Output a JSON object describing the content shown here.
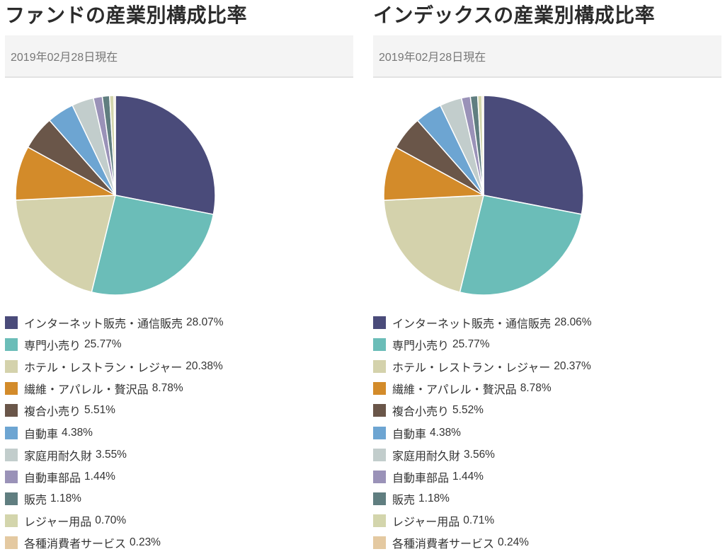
{
  "colors": [
    "#4a4b7a",
    "#6bbdb8",
    "#d4d2ac",
    "#d38b2a",
    "#6a5649",
    "#6da5d2",
    "#c2cdcc",
    "#9a92b8",
    "#607e80",
    "#d3d5ac",
    "#e4c9a1"
  ],
  "chart_data": [
    {
      "type": "pie",
      "title": "ファンドの産業別構成比率",
      "date": "2019年02月28日現在",
      "legend_position": "bottom",
      "categories": [
        "インターネット販売・通信販売",
        "専門小売り",
        "ホテル・レストラン・レジャー",
        "繊維・アパレル・贅沢品",
        "複合小売り",
        "自動車",
        "家庭用耐久財",
        "自動車部品",
        "販売",
        "レジャー用品",
        "各種消費者サービス"
      ],
      "values": [
        28.07,
        25.77,
        20.38,
        8.78,
        5.51,
        4.38,
        3.55,
        1.44,
        1.18,
        0.7,
        0.23
      ],
      "value_labels": [
        "28.07%",
        "25.77%",
        "20.38%",
        "8.78%",
        "5.51%",
        "4.38%",
        "3.55%",
        "1.44%",
        "1.18%",
        "0.70%",
        "0.23%"
      ]
    },
    {
      "type": "pie",
      "title": "インデックスの産業別構成比率",
      "date": "2019年02月28日現在",
      "legend_position": "bottom",
      "categories": [
        "インターネット販売・通信販売",
        "専門小売り",
        "ホテル・レストラン・レジャー",
        "繊維・アパレル・贅沢品",
        "複合小売り",
        "自動車",
        "家庭用耐久財",
        "自動車部品",
        "販売",
        "レジャー用品",
        "各種消費者サービス"
      ],
      "values": [
        28.06,
        25.77,
        20.37,
        8.78,
        5.52,
        4.38,
        3.56,
        1.44,
        1.18,
        0.71,
        0.24
      ],
      "value_labels": [
        "28.06%",
        "25.77%",
        "20.37%",
        "8.78%",
        "5.52%",
        "4.38%",
        "3.56%",
        "1.44%",
        "1.18%",
        "0.71%",
        "0.24%"
      ]
    }
  ]
}
